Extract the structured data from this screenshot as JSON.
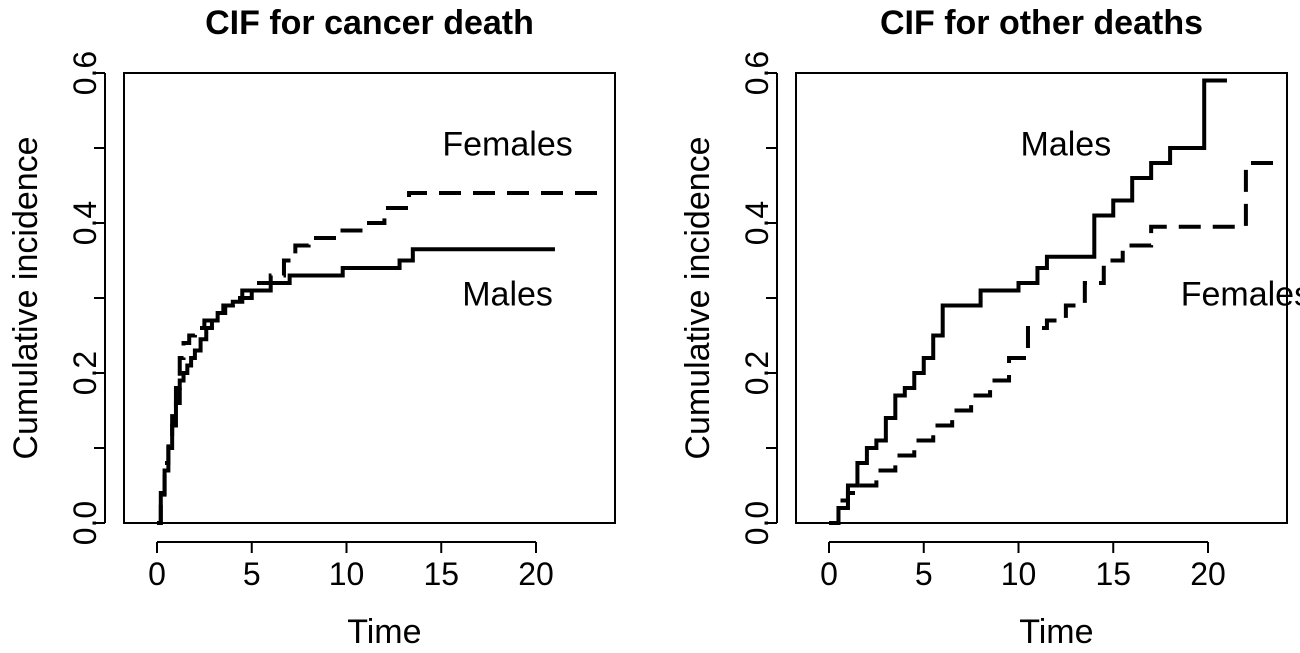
{
  "chart_data": [
    {
      "type": "line",
      "title": "CIF for cancer death",
      "xlabel": "Time",
      "ylabel": "Cumulative incidence",
      "xlim": [
        0,
        24
      ],
      "ylim": [
        0,
        0.6
      ],
      "xticks": [
        0,
        5,
        10,
        15,
        20
      ],
      "xtick_labels": [
        "0",
        "5",
        "10",
        "15",
        "20"
      ],
      "yticks": [
        0,
        0.2,
        0.4,
        0.6
      ],
      "ytick_labels": [
        "0.0",
        "0.2",
        "0.4",
        "0.6"
      ],
      "grid": false,
      "step": true,
      "series": [
        {
          "name": "Males",
          "linestyle": "solid",
          "x": [
            0,
            0.2,
            0.4,
            0.6,
            0.8,
            1.0,
            1.2,
            1.4,
            1.6,
            1.8,
            2.0,
            2.3,
            2.6,
            2.9,
            3.2,
            3.6,
            4.0,
            4.5,
            5.0,
            6.0,
            7.0,
            9.8,
            12.8,
            13.5,
            21.0
          ],
          "y": [
            0,
            0.04,
            0.07,
            0.1,
            0.13,
            0.16,
            0.19,
            0.2,
            0.21,
            0.22,
            0.23,
            0.245,
            0.26,
            0.27,
            0.28,
            0.29,
            0.295,
            0.3,
            0.31,
            0.32,
            0.33,
            0.34,
            0.35,
            0.365,
            0.365
          ]
        },
        {
          "name": "Females",
          "linestyle": "dashed",
          "x": [
            0,
            0.2,
            0.4,
            0.6,
            0.8,
            1.0,
            1.2,
            1.4,
            1.7,
            2.0,
            2.5,
            3.0,
            3.5,
            4.0,
            4.5,
            5.0,
            6.0,
            6.7,
            7.3,
            8.0,
            9.5,
            11.0,
            12.0,
            13.3,
            23.5
          ],
          "y": [
            0,
            0.03,
            0.08,
            0.11,
            0.15,
            0.18,
            0.22,
            0.24,
            0.25,
            0.26,
            0.27,
            0.28,
            0.29,
            0.3,
            0.31,
            0.32,
            0.33,
            0.35,
            0.37,
            0.38,
            0.39,
            0.4,
            0.42,
            0.44,
            0.44
          ]
        }
      ],
      "annotations": [
        {
          "text": "Females",
          "x": 18.5,
          "y": 0.505
        },
        {
          "text": "Males",
          "x": 18.5,
          "y": 0.305
        }
      ]
    },
    {
      "type": "line",
      "title": "CIF for other deaths",
      "xlabel": "Time",
      "ylabel": "Cumulative incidence",
      "xlim": [
        0,
        24
      ],
      "ylim": [
        0,
        0.6
      ],
      "xticks": [
        0,
        5,
        10,
        15,
        20
      ],
      "xtick_labels": [
        "0",
        "5",
        "10",
        "15",
        "20"
      ],
      "yticks": [
        0,
        0.2,
        0.4,
        0.6
      ],
      "ytick_labels": [
        "0.0",
        "0.2",
        "0.4",
        "0.6"
      ],
      "grid": false,
      "step": true,
      "series": [
        {
          "name": "Males",
          "linestyle": "solid",
          "x": [
            0,
            0.5,
            1.0,
            1.5,
            2.0,
            2.5,
            3.0,
            3.5,
            4.0,
            4.5,
            5.0,
            5.5,
            6.0,
            7.0,
            8.0,
            10.0,
            11.0,
            11.5,
            14.0,
            15.0,
            16.0,
            17.0,
            18.0,
            19.0,
            19.8,
            21.0
          ],
          "y": [
            0,
            0.02,
            0.05,
            0.08,
            0.1,
            0.11,
            0.14,
            0.17,
            0.18,
            0.2,
            0.22,
            0.25,
            0.29,
            0.29,
            0.31,
            0.32,
            0.34,
            0.355,
            0.41,
            0.43,
            0.46,
            0.48,
            0.5,
            0.5,
            0.59,
            0.59
          ]
        },
        {
          "name": "Females",
          "linestyle": "dashed",
          "x": [
            0,
            0.5,
            1.0,
            1.5,
            2.5,
            3.5,
            4.5,
            5.5,
            6.5,
            7.5,
            8.5,
            9.5,
            10.5,
            11.5,
            12.5,
            13.5,
            14.5,
            15.5,
            17.0,
            22.0,
            23.5
          ],
          "y": [
            0,
            0.03,
            0.04,
            0.05,
            0.07,
            0.09,
            0.11,
            0.13,
            0.15,
            0.17,
            0.19,
            0.22,
            0.26,
            0.27,
            0.29,
            0.32,
            0.35,
            0.37,
            0.395,
            0.48,
            0.48
          ]
        }
      ],
      "annotations": [
        {
          "text": "Males",
          "x": 12.5,
          "y": 0.505
        },
        {
          "text": "Females",
          "x": 22.0,
          "y": 0.305
        }
      ]
    }
  ]
}
